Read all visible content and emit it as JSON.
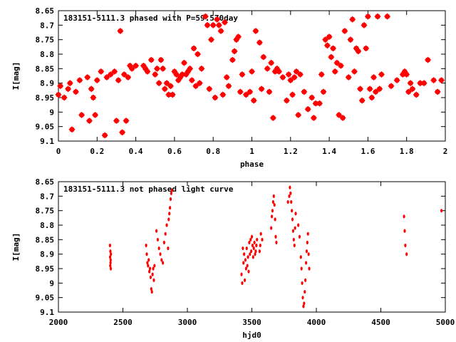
{
  "chart_data": [
    {
      "type": "scatter",
      "title": "183151-5111.3 phased with P=59.570day",
      "xlabel": "phase",
      "ylabel": "I[mag]",
      "xlim": [
        0,
        2
      ],
      "ylim": [
        8.65,
        9.1
      ],
      "y_inverted": true,
      "grid": false,
      "marker_color": "#ff0000",
      "xticks": [
        "0",
        "0.2",
        "0.4",
        "0.6",
        "0.8",
        "1",
        "1.2",
        "1.4",
        "1.6",
        "1.8",
        "2"
      ],
      "yticks": [
        "8.65",
        "8.7",
        "8.75",
        "8.8",
        "8.85",
        "8.9",
        "8.95",
        "9",
        "9.05",
        "9.1"
      ],
      "points": [
        [
          0.0,
          8.94
        ],
        [
          0.01,
          8.91
        ],
        [
          0.03,
          8.95
        ],
        [
          0.05,
          8.92
        ],
        [
          0.06,
          8.9
        ],
        [
          0.07,
          9.06
        ],
        [
          0.09,
          8.93
        ],
        [
          0.11,
          8.89
        ],
        [
          0.12,
          9.01
        ],
        [
          0.15,
          8.88
        ],
        [
          0.16,
          9.03
        ],
        [
          0.17,
          8.92
        ],
        [
          0.18,
          8.95
        ],
        [
          0.19,
          9.01
        ],
        [
          0.2,
          8.89
        ],
        [
          0.22,
          8.86
        ],
        [
          0.24,
          9.08
        ],
        [
          0.25,
          8.88
        ],
        [
          0.27,
          8.87
        ],
        [
          0.29,
          8.86
        ],
        [
          0.3,
          9.03
        ],
        [
          0.31,
          8.89
        ],
        [
          0.32,
          8.72
        ],
        [
          0.33,
          9.07
        ],
        [
          0.34,
          8.87
        ],
        [
          0.35,
          9.03
        ],
        [
          0.36,
          8.88
        ],
        [
          0.37,
          8.84
        ],
        [
          0.38,
          8.85
        ],
        [
          0.4,
          8.84
        ],
        [
          0.44,
          8.84
        ],
        [
          0.45,
          8.85
        ],
        [
          0.46,
          8.86
        ],
        [
          0.48,
          8.82
        ],
        [
          0.5,
          8.87
        ],
        [
          0.51,
          8.85
        ],
        [
          0.52,
          8.9
        ],
        [
          0.53,
          8.82
        ],
        [
          0.54,
          8.85
        ],
        [
          0.55,
          8.92
        ],
        [
          0.56,
          8.9
        ],
        [
          0.57,
          8.94
        ],
        [
          0.58,
          8.91
        ],
        [
          0.59,
          8.94
        ],
        [
          0.6,
          8.86
        ],
        [
          0.61,
          8.87
        ],
        [
          0.62,
          8.89
        ],
        [
          0.63,
          8.88
        ],
        [
          0.64,
          8.87
        ],
        [
          0.65,
          8.83
        ],
        [
          0.66,
          8.87
        ],
        [
          0.67,
          8.86
        ],
        [
          0.68,
          8.85
        ],
        [
          0.69,
          8.89
        ],
        [
          0.7,
          8.78
        ],
        [
          0.71,
          8.91
        ],
        [
          0.72,
          8.8
        ],
        [
          0.73,
          8.9
        ],
        [
          0.74,
          8.85
        ],
        [
          0.76,
          8.67
        ],
        [
          0.77,
          8.7
        ],
        [
          0.78,
          8.92
        ],
        [
          0.79,
          8.75
        ],
        [
          0.8,
          8.7
        ],
        [
          0.81,
          8.95
        ],
        [
          0.82,
          8.68
        ],
        [
          0.83,
          8.7
        ],
        [
          0.84,
          8.72
        ],
        [
          0.85,
          8.94
        ],
        [
          0.86,
          8.69
        ],
        [
          0.87,
          8.88
        ],
        [
          0.88,
          8.91
        ],
        [
          0.9,
          8.82
        ],
        [
          0.91,
          8.79
        ],
        [
          0.92,
          8.75
        ],
        [
          0.93,
          8.74
        ],
        [
          0.94,
          8.93
        ],
        [
          0.95,
          8.87
        ],
        [
          0.97,
          8.94
        ],
        [
          0.99,
          8.93
        ],
        [
          1.0,
          8.86
        ],
        [
          1.01,
          8.96
        ],
        [
          1.02,
          8.72
        ],
        [
          1.04,
          8.76
        ],
        [
          1.05,
          8.92
        ],
        [
          1.06,
          8.81
        ],
        [
          1.08,
          8.85
        ],
        [
          1.09,
          8.93
        ],
        [
          1.1,
          8.83
        ],
        [
          1.11,
          9.02
        ],
        [
          1.12,
          8.86
        ],
        [
          1.13,
          8.85
        ],
        [
          1.14,
          8.86
        ],
        [
          1.16,
          8.88
        ],
        [
          1.18,
          8.96
        ],
        [
          1.19,
          8.87
        ],
        [
          1.2,
          8.89
        ],
        [
          1.21,
          8.94
        ],
        [
          1.22,
          8.88
        ],
        [
          1.23,
          8.86
        ],
        [
          1.24,
          9.01
        ],
        [
          1.25,
          8.87
        ],
        [
          1.27,
          8.93
        ],
        [
          1.29,
          8.99
        ],
        [
          1.31,
          8.95
        ],
        [
          1.32,
          9.02
        ],
        [
          1.33,
          8.97
        ],
        [
          1.35,
          8.97
        ],
        [
          1.36,
          8.87
        ],
        [
          1.37,
          8.93
        ],
        [
          1.38,
          8.75
        ],
        [
          1.39,
          8.77
        ],
        [
          1.4,
          8.74
        ],
        [
          1.41,
          8.81
        ],
        [
          1.42,
          8.78
        ],
        [
          1.43,
          8.86
        ],
        [
          1.44,
          8.83
        ],
        [
          1.45,
          9.01
        ],
        [
          1.46,
          8.84
        ],
        [
          1.47,
          9.02
        ],
        [
          1.48,
          8.72
        ],
        [
          1.5,
          8.88
        ],
        [
          1.51,
          8.75
        ],
        [
          1.52,
          8.68
        ],
        [
          1.53,
          8.86
        ],
        [
          1.54,
          8.78
        ],
        [
          1.55,
          8.79
        ],
        [
          1.56,
          8.92
        ],
        [
          1.57,
          8.96
        ],
        [
          1.58,
          8.7
        ],
        [
          1.59,
          8.78
        ],
        [
          1.6,
          8.67
        ],
        [
          1.61,
          8.92
        ],
        [
          1.62,
          8.95
        ],
        [
          1.63,
          8.88
        ],
        [
          1.64,
          8.93
        ],
        [
          1.65,
          8.67
        ],
        [
          1.66,
          8.92
        ],
        [
          1.67,
          8.87
        ],
        [
          1.7,
          8.67
        ],
        [
          1.72,
          8.91
        ],
        [
          1.75,
          8.89
        ],
        [
          1.78,
          8.87
        ],
        [
          1.79,
          8.86
        ],
        [
          1.8,
          8.87
        ],
        [
          1.81,
          8.93
        ],
        [
          1.82,
          8.9
        ],
        [
          1.83,
          8.92
        ],
        [
          1.85,
          8.94
        ],
        [
          1.87,
          8.9
        ],
        [
          1.89,
          8.9
        ],
        [
          1.91,
          8.82
        ],
        [
          1.94,
          8.89
        ],
        [
          1.96,
          8.93
        ],
        [
          1.98,
          8.89
        ]
      ]
    },
    {
      "type": "scatter",
      "title": "183151-5111.3 not phased light curve",
      "xlabel": "hjd0",
      "ylabel": "I[mag]",
      "xlim": [
        2000,
        5000
      ],
      "ylim": [
        8.65,
        9.1
      ],
      "y_inverted": true,
      "grid": false,
      "marker_color": "#ff0000",
      "xticks": [
        "2000",
        "2500",
        "3000",
        "3500",
        "4000",
        "4500",
        "5000"
      ],
      "yticks": [
        "8.65",
        "8.7",
        "8.75",
        "8.8",
        "8.85",
        "8.9",
        "8.95",
        "9",
        "9.05",
        "9.1"
      ],
      "points": [
        [
          2400,
          8.87
        ],
        [
          2401,
          8.91
        ],
        [
          2402,
          8.94
        ],
        [
          2403,
          8.89
        ],
        [
          2404,
          8.93
        ],
        [
          2405,
          8.92
        ],
        [
          2406,
          8.95
        ],
        [
          2407,
          8.9
        ],
        [
          2680,
          8.87
        ],
        [
          2685,
          8.9
        ],
        [
          2690,
          8.93
        ],
        [
          2695,
          8.94
        ],
        [
          2700,
          8.92
        ],
        [
          2705,
          8.96
        ],
        [
          2710,
          8.95
        ],
        [
          2715,
          8.98
        ],
        [
          2720,
          9.02
        ],
        [
          2725,
          9.03
        ],
        [
          2730,
          8.97
        ],
        [
          2735,
          8.95
        ],
        [
          2740,
          8.99
        ],
        [
          2745,
          8.94
        ],
        [
          2760,
          8.82
        ],
        [
          2770,
          8.85
        ],
        [
          2780,
          8.88
        ],
        [
          2790,
          8.9
        ],
        [
          2800,
          8.92
        ],
        [
          2810,
          8.93
        ],
        [
          2820,
          8.86
        ],
        [
          2830,
          8.83
        ],
        [
          2840,
          8.8
        ],
        [
          2850,
          8.88
        ],
        [
          2855,
          8.78
        ],
        [
          2860,
          8.76
        ],
        [
          2865,
          8.74
        ],
        [
          2870,
          8.71
        ],
        [
          2875,
          8.69
        ],
        [
          2880,
          8.68
        ],
        [
          3420,
          8.97
        ],
        [
          3425,
          9.0
        ],
        [
          3430,
          8.88
        ],
        [
          3435,
          8.93
        ],
        [
          3440,
          8.9
        ],
        [
          3445,
          8.99
        ],
        [
          3450,
          8.92
        ],
        [
          3455,
          8.95
        ],
        [
          3460,
          8.88
        ],
        [
          3465,
          8.94
        ],
        [
          3470,
          8.91
        ],
        [
          3475,
          8.96
        ],
        [
          3480,
          8.86
        ],
        [
          3485,
          8.9
        ],
        [
          3490,
          8.85
        ],
        [
          3495,
          8.89
        ],
        [
          3500,
          8.84
        ],
        [
          3505,
          8.87
        ],
        [
          3510,
          8.91
        ],
        [
          3515,
          8.88
        ],
        [
          3520,
          8.86
        ],
        [
          3525,
          8.9
        ],
        [
          3530,
          8.89
        ],
        [
          3535,
          8.87
        ],
        [
          3540,
          8.85
        ],
        [
          3560,
          8.89
        ],
        [
          3565,
          8.87
        ],
        [
          3570,
          8.83
        ],
        [
          3580,
          8.85
        ],
        [
          3650,
          8.81
        ],
        [
          3655,
          8.77
        ],
        [
          3660,
          8.75
        ],
        [
          3665,
          8.72
        ],
        [
          3670,
          8.7
        ],
        [
          3675,
          8.73
        ],
        [
          3680,
          8.78
        ],
        [
          3685,
          8.84
        ],
        [
          3690,
          8.86
        ],
        [
          3780,
          8.72
        ],
        [
          3790,
          8.7
        ],
        [
          3795,
          8.67
        ],
        [
          3800,
          8.69
        ],
        [
          3805,
          8.72
        ],
        [
          3810,
          8.75
        ],
        [
          3815,
          8.78
        ],
        [
          3820,
          8.82
        ],
        [
          3825,
          8.85
        ],
        [
          3830,
          8.87
        ],
        [
          3835,
          8.81
        ],
        [
          3840,
          8.76
        ],
        [
          3860,
          8.8
        ],
        [
          3870,
          8.84
        ],
        [
          3880,
          8.91
        ],
        [
          3885,
          8.95
        ],
        [
          3890,
          9.0
        ],
        [
          3895,
          9.05
        ],
        [
          3900,
          9.08
        ],
        [
          3905,
          9.07
        ],
        [
          3910,
          9.03
        ],
        [
          3915,
          8.99
        ],
        [
          3920,
          8.93
        ],
        [
          3925,
          8.89
        ],
        [
          3930,
          8.86
        ],
        [
          3935,
          8.83
        ],
        [
          3940,
          8.9
        ],
        [
          3945,
          8.95
        ],
        [
          4680,
          8.77
        ],
        [
          4685,
          8.82
        ],
        [
          4690,
          8.87
        ],
        [
          4700,
          8.9
        ],
        [
          4970,
          8.75
        ]
      ]
    }
  ]
}
